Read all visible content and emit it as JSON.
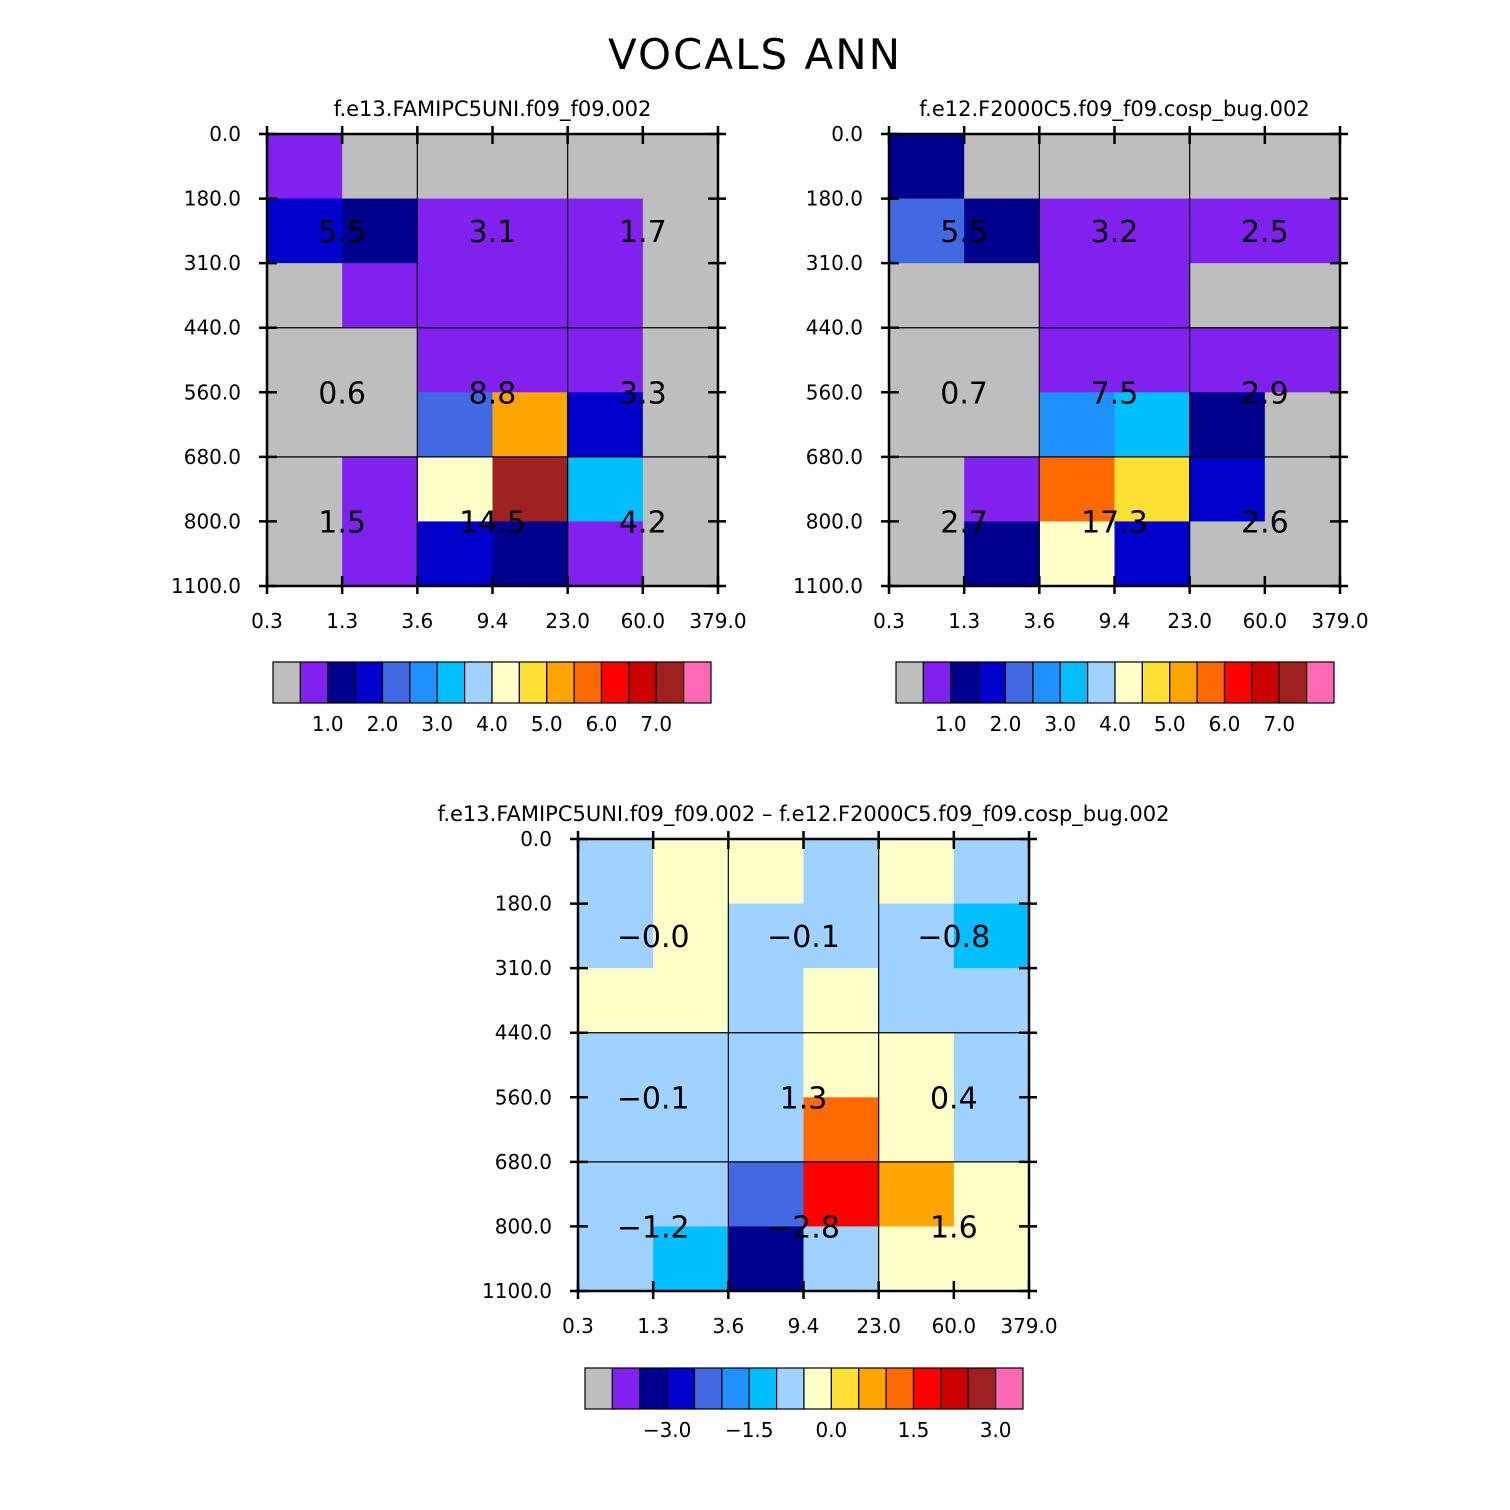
{
  "title": "VOCALS ANN",
  "colors": {
    "palette": [
      "#bebebe",
      "#8021f0",
      "#00008f",
      "#0000cd",
      "#4169e1",
      "#1e90ff",
      "#00bfff",
      "#a0d2ff",
      "#ffffc8",
      "#ffe033",
      "#ffa500",
      "#ff6a00",
      "#ff0000",
      "#cd0000",
      "#a02020",
      "#ff69b4"
    ]
  },
  "chart_data": [
    {
      "type": "heatmap",
      "title": "f.e13.FAMIPC5UNI.f09_f09.002",
      "xlabel": "",
      "ylabel": "",
      "x_ticks": [
        "0.3",
        "1.3",
        "3.6",
        "9.4",
        "23.0",
        "60.0",
        "379.0"
      ],
      "y_ticks": [
        "0.0",
        "180.0",
        "310.0",
        "440.0",
        "560.0",
        "680.0",
        "800.0",
        "1100.0"
      ],
      "cells": [
        [
          1,
          0,
          0,
          0,
          0,
          0
        ],
        [
          3,
          2,
          1,
          1,
          1,
          0
        ],
        [
          0,
          1,
          1,
          1,
          1,
          0
        ],
        [
          0,
          0,
          1,
          1,
          1,
          0
        ],
        [
          0,
          0,
          4,
          10,
          3,
          0
        ],
        [
          0,
          1,
          8,
          14,
          6,
          0
        ],
        [
          0,
          1,
          3,
          2,
          1,
          0
        ]
      ],
      "box_labels": [
        [
          "5.5",
          "3.1",
          "1.7"
        ],
        [
          "0.6",
          "8.8",
          "3.3"
        ],
        [
          "1.5",
          "14.5",
          "4.2"
        ]
      ],
      "colorbar": {
        "labels": [
          "1.0",
          "2.0",
          "3.0",
          "4.0",
          "5.0",
          "6.0",
          "7.0"
        ],
        "start_index": 0
      }
    },
    {
      "type": "heatmap",
      "title": "f.e12.F2000C5.f09_f09.cosp_bug.002",
      "xlabel": "",
      "ylabel": "",
      "x_ticks": [
        "0.3",
        "1.3",
        "3.6",
        "9.4",
        "23.0",
        "60.0",
        "379.0"
      ],
      "y_ticks": [
        "0.0",
        "180.0",
        "310.0",
        "440.0",
        "560.0",
        "680.0",
        "800.0",
        "1100.0"
      ],
      "cells": [
        [
          2,
          0,
          0,
          0,
          0,
          0
        ],
        [
          4,
          2,
          1,
          1,
          1,
          1
        ],
        [
          0,
          0,
          1,
          1,
          0,
          0
        ],
        [
          0,
          0,
          1,
          1,
          1,
          1
        ],
        [
          0,
          0,
          5,
          6,
          2,
          0
        ],
        [
          0,
          1,
          11,
          9,
          3,
          0
        ],
        [
          0,
          2,
          8,
          3,
          0,
          0
        ]
      ],
      "box_labels": [
        [
          "5.5",
          "3.2",
          "2.5"
        ],
        [
          "0.7",
          "7.5",
          "2.9"
        ],
        [
          "2.7",
          "17.3",
          "2.6"
        ]
      ],
      "colorbar": {
        "labels": [
          "1.0",
          "2.0",
          "3.0",
          "4.0",
          "5.0",
          "6.0",
          "7.0"
        ],
        "start_index": 0
      }
    },
    {
      "type": "heatmap",
      "title": "f.e13.FAMIPC5UNI.f09_f09.002 – f.e12.F2000C5.f09_f09.cosp_bug.002",
      "xlabel": "",
      "ylabel": "",
      "x_ticks": [
        "0.3",
        "1.3",
        "3.6",
        "9.4",
        "23.0",
        "60.0",
        "379.0"
      ],
      "y_ticks": [
        "0.0",
        "180.0",
        "310.0",
        "440.0",
        "560.0",
        "680.0",
        "800.0",
        "1100.0"
      ],
      "cells": [
        [
          7,
          8,
          8,
          7,
          8,
          7
        ],
        [
          7,
          8,
          7,
          7,
          7,
          6
        ],
        [
          8,
          8,
          7,
          8,
          7,
          7
        ],
        [
          7,
          7,
          7,
          8,
          8,
          7
        ],
        [
          7,
          7,
          7,
          11,
          8,
          7
        ],
        [
          7,
          7,
          4,
          12,
          10,
          8
        ],
        [
          7,
          6,
          2,
          7,
          8,
          8
        ]
      ],
      "box_labels": [
        [
          "−0.0",
          "−0.1",
          "−0.8"
        ],
        [
          "−0.1",
          "1.3",
          "0.4"
        ],
        [
          "−1.2",
          "−2.8",
          "1.6"
        ]
      ],
      "colorbar": {
        "labels": [
          "−3.0",
          "−1.5",
          "0.0",
          "1.5",
          "3.0"
        ],
        "start_index": 0
      }
    }
  ]
}
